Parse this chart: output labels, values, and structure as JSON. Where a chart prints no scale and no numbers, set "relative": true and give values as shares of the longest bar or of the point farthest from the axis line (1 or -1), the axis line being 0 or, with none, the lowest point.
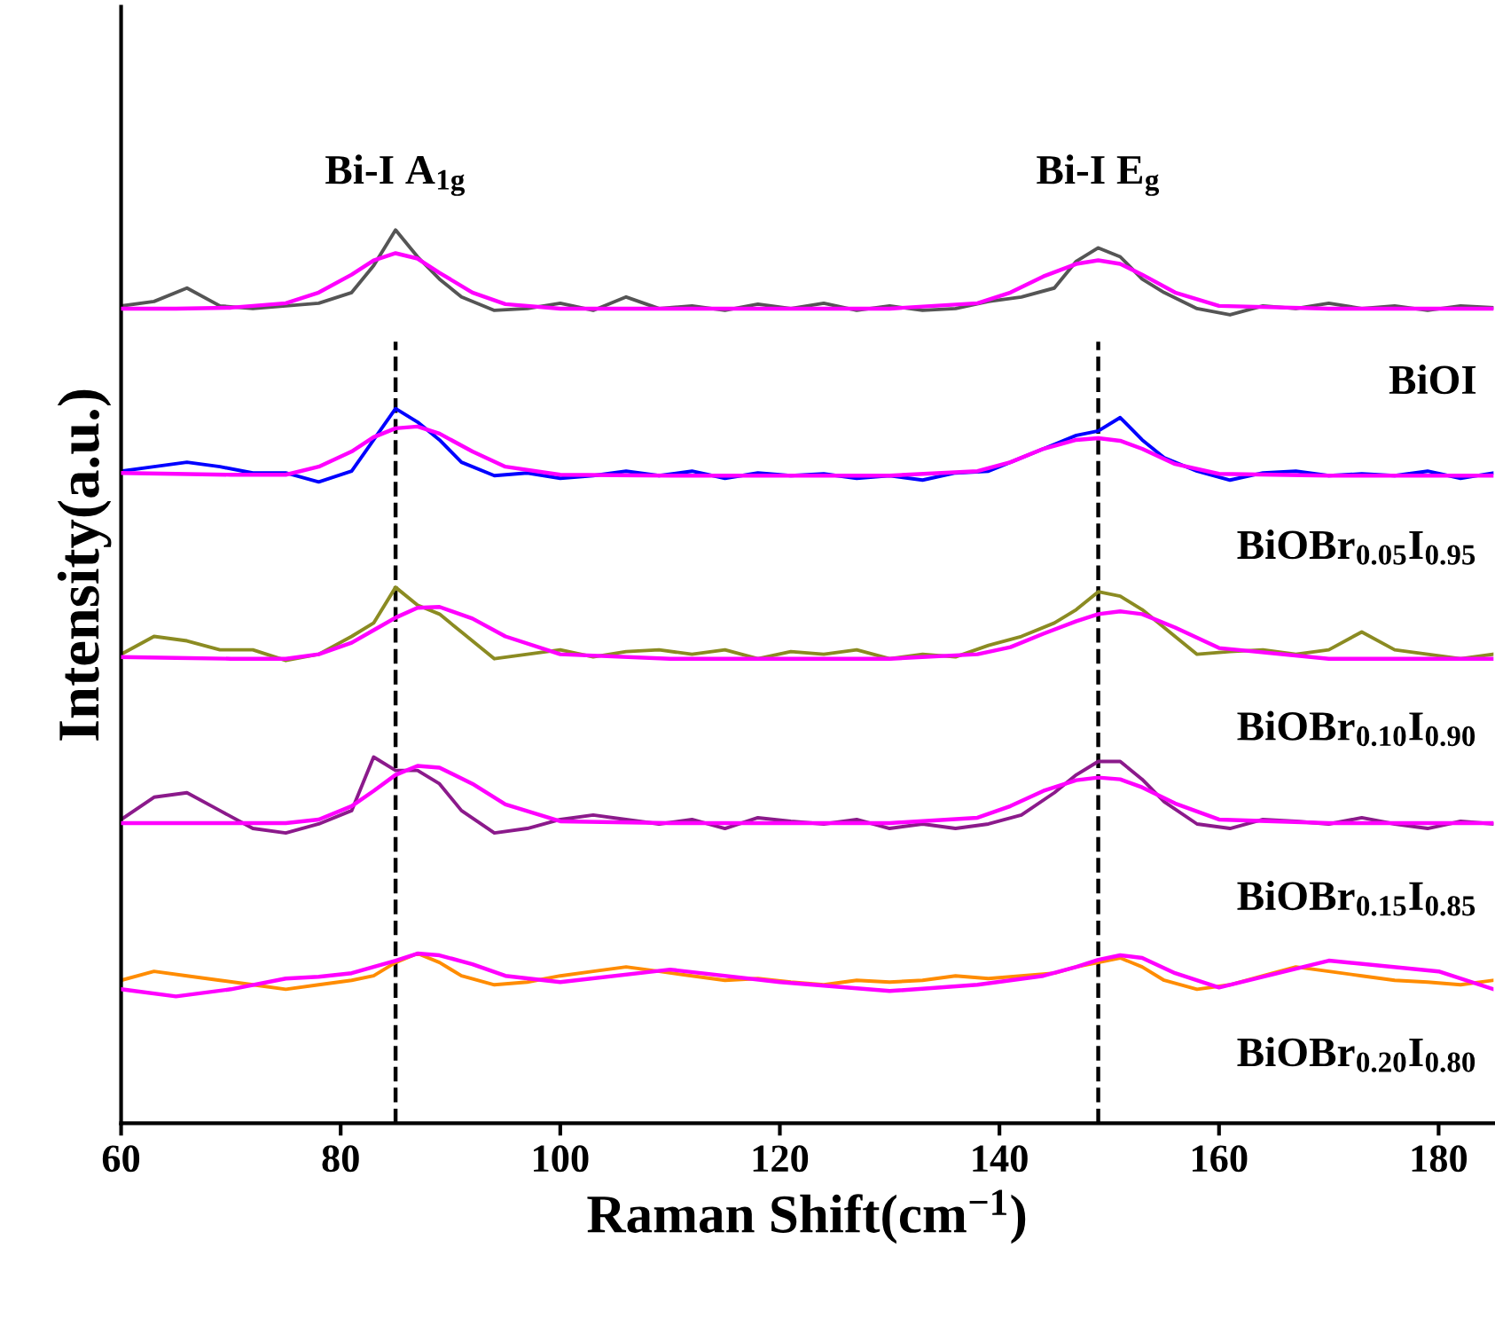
{
  "chart_data": {
    "type": "line",
    "relative": true,
    "xlabel": "Raman Shift(cm$^{−1}$)",
    "ylabel": "Intensity(a.u.)",
    "xlim": [
      60,
      185
    ],
    "xticks": [
      60,
      80,
      100,
      120,
      140,
      160,
      180
    ],
    "tick_labels": "x",
    "grid": false,
    "legend": false,
    "line_style": "solid",
    "marker": "none",
    "x": [
      60,
      63,
      66,
      69,
      72,
      75,
      78,
      81,
      83,
      85,
      87,
      89,
      91,
      94,
      97,
      100,
      103,
      106,
      109,
      112,
      115,
      118,
      121,
      124,
      127,
      130,
      133,
      136,
      139,
      142,
      145,
      147,
      149,
      151,
      153,
      155,
      158,
      161,
      164,
      167,
      170,
      173,
      176,
      179,
      182,
      185
    ],
    "series": [
      {
        "name": "BiOI",
        "color": "#555555",
        "values": [
          0.915,
          0.92,
          0.935,
          0.915,
          0.912,
          0.915,
          0.918,
          0.93,
          0.96,
          1.0,
          0.97,
          0.945,
          0.925,
          0.91,
          0.912,
          0.918,
          0.91,
          0.925,
          0.912,
          0.915,
          0.91,
          0.917,
          0.912,
          0.918,
          0.91,
          0.915,
          0.91,
          0.912,
          0.92,
          0.925,
          0.935,
          0.965,
          0.98,
          0.97,
          0.945,
          0.93,
          0.912,
          0.905,
          0.915,
          0.912,
          0.918,
          0.912,
          0.915,
          0.91,
          0.915,
          0.913
        ]
      },
      {
        "name": "BiOBr$_{0.05}$I$_{0.95}$",
        "color": "#0000ff",
        "values": [
          0.73,
          0.735,
          0.74,
          0.735,
          0.728,
          0.728,
          0.718,
          0.73,
          0.765,
          0.8,
          0.785,
          0.765,
          0.74,
          0.725,
          0.728,
          0.722,
          0.725,
          0.73,
          0.725,
          0.73,
          0.722,
          0.728,
          0.725,
          0.727,
          0.722,
          0.725,
          0.72,
          0.728,
          0.73,
          0.745,
          0.76,
          0.77,
          0.775,
          0.79,
          0.765,
          0.745,
          0.73,
          0.72,
          0.728,
          0.73,
          0.725,
          0.727,
          0.725,
          0.73,
          0.722,
          0.728
        ]
      },
      {
        "name": "BiOBr$_{0.10}$I$_{0.90}$",
        "color": "#8b8b22",
        "values": [
          0.525,
          0.545,
          0.54,
          0.53,
          0.53,
          0.518,
          0.525,
          0.545,
          0.56,
          0.6,
          0.58,
          0.57,
          0.55,
          0.52,
          0.525,
          0.53,
          0.522,
          0.528,
          0.53,
          0.525,
          0.53,
          0.52,
          0.528,
          0.525,
          0.53,
          0.52,
          0.525,
          0.522,
          0.535,
          0.545,
          0.56,
          0.575,
          0.595,
          0.59,
          0.575,
          0.555,
          0.525,
          0.528,
          0.53,
          0.525,
          0.53,
          0.55,
          0.53,
          0.525,
          0.52,
          0.525
        ]
      },
      {
        "name": "BiOBr$_{0.15}$I$_{0.85}$",
        "color": "#8b1a8b",
        "values": [
          0.34,
          0.365,
          0.37,
          0.35,
          0.33,
          0.325,
          0.335,
          0.35,
          0.41,
          0.395,
          0.395,
          0.38,
          0.35,
          0.325,
          0.33,
          0.34,
          0.345,
          0.34,
          0.335,
          0.34,
          0.33,
          0.342,
          0.338,
          0.335,
          0.34,
          0.33,
          0.335,
          0.33,
          0.335,
          0.345,
          0.37,
          0.39,
          0.405,
          0.405,
          0.385,
          0.36,
          0.335,
          0.33,
          0.34,
          0.338,
          0.335,
          0.342,
          0.335,
          0.33,
          0.338,
          0.335
        ]
      },
      {
        "name": "BiOBr$_{0.20}$I$_{0.80}$",
        "color": "#ff8c00",
        "values": [
          0.16,
          0.17,
          0.165,
          0.16,
          0.155,
          0.15,
          0.155,
          0.16,
          0.165,
          0.18,
          0.19,
          0.18,
          0.165,
          0.155,
          0.158,
          0.165,
          0.17,
          0.175,
          0.17,
          0.165,
          0.16,
          0.162,
          0.158,
          0.155,
          0.16,
          0.158,
          0.16,
          0.165,
          0.162,
          0.165,
          0.168,
          0.175,
          0.18,
          0.185,
          0.175,
          0.16,
          0.15,
          0.155,
          0.165,
          0.175,
          0.17,
          0.165,
          0.16,
          0.158,
          0.155,
          0.16
        ]
      },
      {
        "color": "#ff00ff",
        "x": [
          60,
          65,
          70,
          75,
          78,
          81,
          83,
          85,
          87,
          89,
          92,
          95,
          100,
          110,
          120,
          130,
          138,
          141,
          144,
          147,
          149,
          151,
          153,
          156,
          160,
          170,
          180,
          185
        ],
        "values": [
          0.912,
          0.912,
          0.913,
          0.918,
          0.93,
          0.95,
          0.966,
          0.974,
          0.968,
          0.952,
          0.93,
          0.917,
          0.912,
          0.912,
          0.912,
          0.912,
          0.918,
          0.93,
          0.948,
          0.962,
          0.966,
          0.962,
          0.95,
          0.93,
          0.915,
          0.912,
          0.912,
          0.912
        ]
      },
      {
        "color": "#ff00ff",
        "x": [
          60,
          65,
          70,
          75,
          78,
          81,
          83,
          85,
          87,
          89,
          92,
          95,
          100,
          110,
          120,
          130,
          138,
          141,
          144,
          147,
          149,
          151,
          153,
          156,
          160,
          170,
          180,
          185
        ],
        "values": [
          0.728,
          0.727,
          0.726,
          0.726,
          0.735,
          0.752,
          0.768,
          0.778,
          0.78,
          0.772,
          0.752,
          0.735,
          0.726,
          0.725,
          0.725,
          0.725,
          0.73,
          0.74,
          0.755,
          0.765,
          0.767,
          0.764,
          0.755,
          0.738,
          0.727,
          0.725,
          0.725,
          0.725
        ]
      },
      {
        "color": "#ff00ff",
        "x": [
          60,
          65,
          70,
          75,
          78,
          81,
          83,
          85,
          87,
          89,
          92,
          95,
          100,
          110,
          120,
          130,
          138,
          141,
          144,
          147,
          149,
          151,
          153,
          156,
          160,
          170,
          180,
          185
        ],
        "values": [
          0.522,
          0.521,
          0.52,
          0.52,
          0.525,
          0.538,
          0.552,
          0.566,
          0.577,
          0.578,
          0.565,
          0.545,
          0.525,
          0.52,
          0.52,
          0.52,
          0.525,
          0.533,
          0.548,
          0.562,
          0.57,
          0.573,
          0.57,
          0.555,
          0.532,
          0.52,
          0.52,
          0.52
        ]
      },
      {
        "color": "#ff00ff",
        "x": [
          60,
          65,
          70,
          75,
          78,
          81,
          83,
          85,
          87,
          89,
          92,
          95,
          100,
          110,
          120,
          130,
          138,
          141,
          144,
          147,
          149,
          151,
          153,
          156,
          160,
          170,
          180,
          185
        ],
        "values": [
          0.336,
          0.336,
          0.336,
          0.336,
          0.34,
          0.355,
          0.372,
          0.39,
          0.4,
          0.398,
          0.38,
          0.357,
          0.338,
          0.336,
          0.336,
          0.336,
          0.342,
          0.355,
          0.372,
          0.384,
          0.387,
          0.385,
          0.376,
          0.358,
          0.34,
          0.336,
          0.336,
          0.336
        ]
      },
      {
        "color": "#ff00ff",
        "x": [
          60,
          65,
          70,
          75,
          78,
          81,
          83,
          85,
          87,
          89,
          92,
          95,
          100,
          110,
          120,
          130,
          138,
          141,
          144,
          147,
          149,
          151,
          153,
          156,
          160,
          170,
          180,
          185
        ],
        "values": [
          0.15,
          0.142,
          0.15,
          0.162,
          0.164,
          0.168,
          0.175,
          0.182,
          0.19,
          0.188,
          0.178,
          0.165,
          0.158,
          0.172,
          0.158,
          0.148,
          0.155,
          0.16,
          0.165,
          0.175,
          0.183,
          0.188,
          0.185,
          0.168,
          0.152,
          0.182,
          0.17,
          0.15
        ]
      }
    ],
    "ref_lines": [
      {
        "axis": "x",
        "value": 85,
        "color": "#000000",
        "line_style": "dashed"
      },
      {
        "axis": "x",
        "value": 149,
        "color": "#000000",
        "line_style": "dashed"
      }
    ],
    "annotations": [
      "Bi-I A$_{1g}$",
      "Bi-I E$_{g}$"
    ]
  }
}
